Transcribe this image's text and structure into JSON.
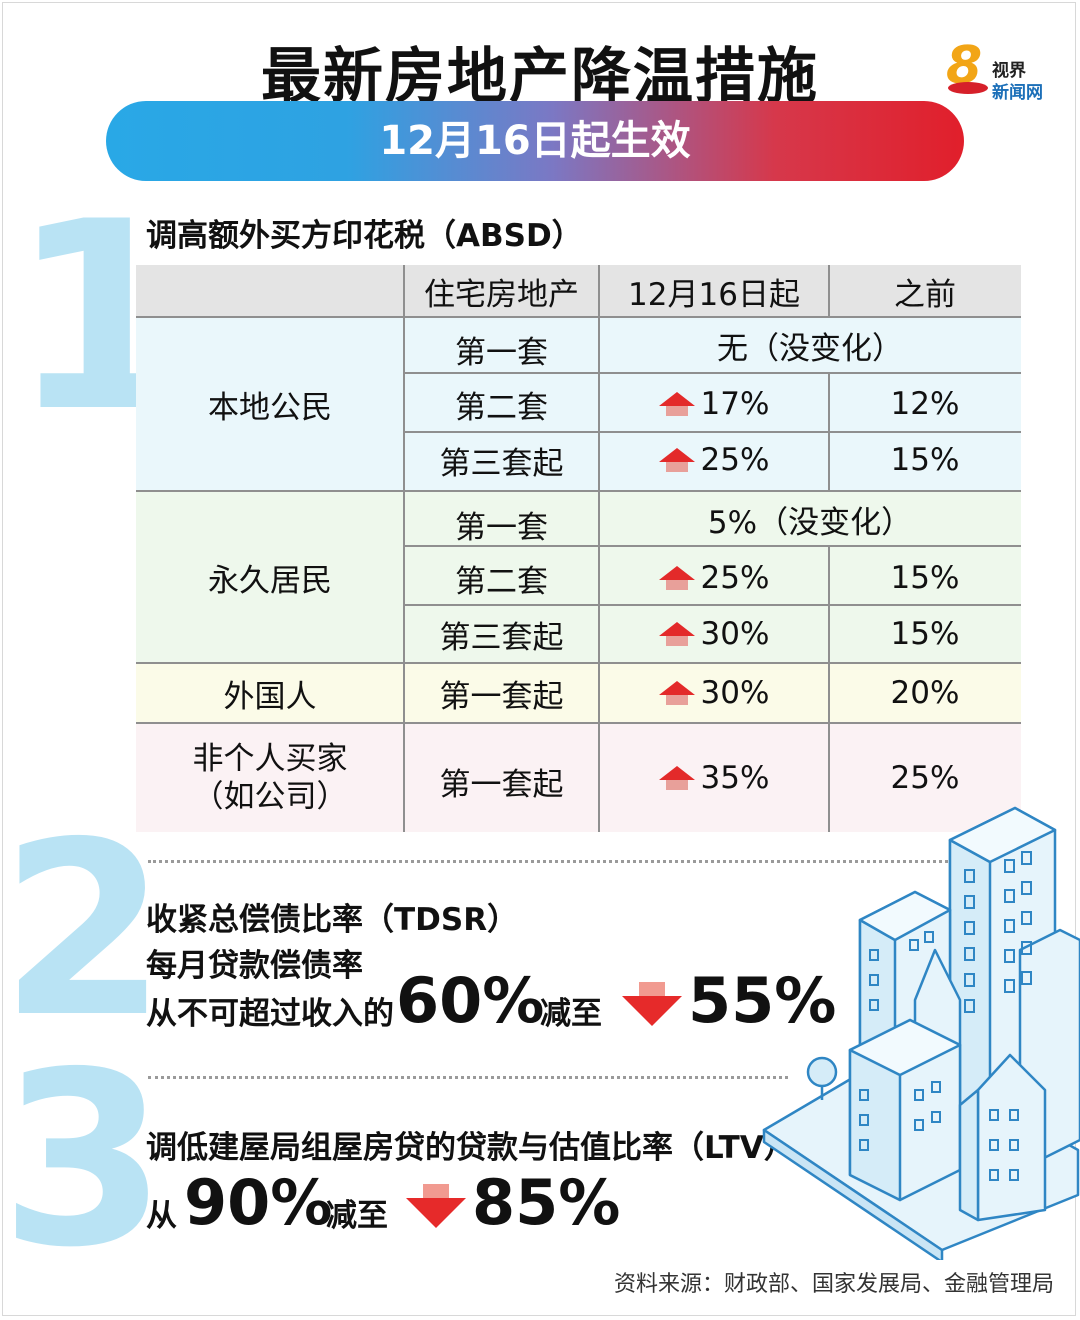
{
  "header": {
    "title": "最新房地产降温措施",
    "effective": "12月16日起生效"
  },
  "logo": {
    "number": "8",
    "line1": "视界",
    "line2": "新闻网"
  },
  "section1": {
    "number": "1",
    "heading": "调高额外买方印花税（ABSD）",
    "table": {
      "headers": [
        "",
        "住宅房地产",
        "12月16日起",
        "之前"
      ],
      "groups": [
        {
          "label": "本地公民",
          "rows": [
            {
              "property": "第一套",
              "merged": "无（没变化）"
            },
            {
              "property": "第二套",
              "new": "17%",
              "old": "12%"
            },
            {
              "property": "第三套起",
              "new": "25%",
              "old": "15%"
            }
          ]
        },
        {
          "label": "永久居民",
          "rows": [
            {
              "property": "第一套",
              "merged": "5%（没变化）"
            },
            {
              "property": "第二套",
              "new": "25%",
              "old": "15%"
            },
            {
              "property": "第三套起",
              "new": "30%",
              "old": "15%"
            }
          ]
        },
        {
          "label": "外国人",
          "rows": [
            {
              "property": "第一套起",
              "new": "30%",
              "old": "20%"
            }
          ]
        },
        {
          "label_line1": "非个人买家",
          "label_line2": "（如公司）",
          "rows": [
            {
              "property": "第一套起",
              "new": "35%",
              "old": "25%"
            }
          ]
        }
      ]
    },
    "icons": {
      "increase": "arrow-up-icon"
    }
  },
  "section2": {
    "number": "2",
    "heading": "收紧总偿债比率（TDSR）",
    "subheading": "每月贷款偿债率",
    "prefix": "从不可超过收入的",
    "from": "60%",
    "middle": "减至",
    "to": "55%"
  },
  "section3": {
    "number": "3",
    "heading": "调低建屋局组屋房贷的贷款与估值比率（LTV）",
    "prefix": "从",
    "from": "90%",
    "middle": "减至",
    "to": "85%"
  },
  "source": "资料来源：财政部、国家发展局、金融管理局",
  "colors": {
    "accent_blue": "#29a8e6",
    "accent_red": "#e11f2b",
    "numeral": "#b9e3f4",
    "arrow": "#e32a2a"
  }
}
